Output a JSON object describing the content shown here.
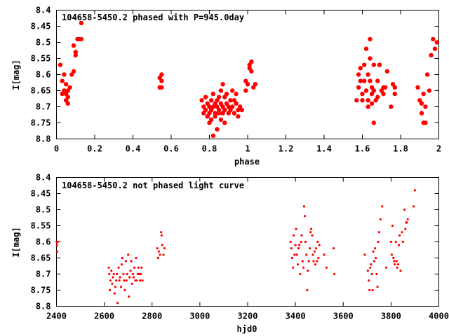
{
  "chart_data": [
    {
      "type": "scatter",
      "title": "104658-5450.2 phased with P=945.0day",
      "xlabel": "phase",
      "ylabel": "I[mag]",
      "xlim": [
        0,
        2
      ],
      "ylim": [
        8.8,
        8.4
      ],
      "y_inverted": true,
      "x_ticks": [
        "0",
        "0.2",
        "0.4",
        "0.6",
        "0.8",
        "1",
        "1.2",
        "1.4",
        "1.6",
        "1.8",
        "2"
      ],
      "y_ticks": [
        "8.4",
        "8.45",
        "8.5",
        "8.55",
        "8.6",
        "8.65",
        "8.7",
        "8.75",
        "8.8"
      ],
      "grid": false,
      "marker": "filled-circle-large",
      "color": "#ff0000",
      "points": [
        [
          0.02,
          8.57
        ],
        [
          0.03,
          8.62
        ],
        [
          0.03,
          8.66
        ],
        [
          0.04,
          8.6
        ],
        [
          0.04,
          8.65
        ],
        [
          0.05,
          8.63
        ],
        [
          0.05,
          8.68
        ],
        [
          0.06,
          8.67
        ],
        [
          0.06,
          8.69
        ],
        [
          0.07,
          8.64
        ],
        [
          0.05,
          8.66
        ],
        [
          0.06,
          8.65
        ],
        [
          0.08,
          8.6
        ],
        [
          0.09,
          8.51
        ],
        [
          0.09,
          8.59
        ],
        [
          0.1,
          8.53
        ],
        [
          0.1,
          8.54
        ],
        [
          0.11,
          8.49
        ],
        [
          0.12,
          8.49
        ],
        [
          0.13,
          8.49
        ],
        [
          0.13,
          8.44
        ],
        [
          0.54,
          8.61
        ],
        [
          0.55,
          8.6
        ],
        [
          0.55,
          8.62
        ],
        [
          0.54,
          8.64
        ],
        [
          0.55,
          8.64
        ],
        [
          0.76,
          8.68
        ],
        [
          0.77,
          8.7
        ],
        [
          0.77,
          8.72
        ],
        [
          0.78,
          8.67
        ],
        [
          0.78,
          8.71
        ],
        [
          0.79,
          8.73
        ],
        [
          0.79,
          8.69
        ],
        [
          0.8,
          8.7
        ],
        [
          0.8,
          8.72
        ],
        [
          0.8,
          8.75
        ],
        [
          0.81,
          8.68
        ],
        [
          0.81,
          8.71
        ],
        [
          0.81,
          8.74
        ],
        [
          0.82,
          8.7
        ],
        [
          0.82,
          8.66
        ],
        [
          0.82,
          8.79
        ],
        [
          0.83,
          8.72
        ],
        [
          0.83,
          8.69
        ],
        [
          0.83,
          8.73
        ],
        [
          0.84,
          8.7
        ],
        [
          0.84,
          8.68
        ],
        [
          0.84,
          8.77
        ],
        [
          0.85,
          8.67
        ],
        [
          0.85,
          8.72
        ],
        [
          0.85,
          8.71
        ],
        [
          0.86,
          8.69
        ],
        [
          0.86,
          8.65
        ],
        [
          0.86,
          8.74
        ],
        [
          0.87,
          8.7
        ],
        [
          0.87,
          8.63
        ],
        [
          0.87,
          8.72
        ],
        [
          0.88,
          8.67
        ],
        [
          0.88,
          8.71
        ],
        [
          0.88,
          8.75
        ],
        [
          0.89,
          8.69
        ],
        [
          0.89,
          8.66
        ],
        [
          0.9,
          8.72
        ],
        [
          0.9,
          8.7
        ],
        [
          0.91,
          8.71
        ],
        [
          0.91,
          8.68
        ],
        [
          0.92,
          8.7
        ],
        [
          0.92,
          8.65
        ],
        [
          0.93,
          8.72
        ],
        [
          0.93,
          8.68
        ],
        [
          0.94,
          8.69
        ],
        [
          0.94,
          8.66
        ],
        [
          0.95,
          8.71
        ],
        [
          0.95,
          8.73
        ],
        [
          0.96,
          8.7
        ],
        [
          0.97,
          8.71
        ],
        [
          0.99,
          8.62
        ],
        [
          0.99,
          8.65
        ],
        [
          1.0,
          8.63
        ],
        [
          1.01,
          8.58
        ],
        [
          1.01,
          8.57
        ],
        [
          1.02,
          8.56
        ],
        [
          1.02,
          8.59
        ],
        [
          1.03,
          8.64
        ],
        [
          1.04,
          8.63
        ],
        [
          1.57,
          8.68
        ],
        [
          1.58,
          8.64
        ],
        [
          1.58,
          8.6
        ],
        [
          1.59,
          8.62
        ],
        [
          1.59,
          8.58
        ],
        [
          1.6,
          8.66
        ],
        [
          1.6,
          8.68
        ],
        [
          1.61,
          8.62
        ],
        [
          1.61,
          8.57
        ],
        [
          1.62,
          8.52
        ],
        [
          1.62,
          8.65
        ],
        [
          1.63,
          8.6
        ],
        [
          1.63,
          8.68
        ],
        [
          1.63,
          8.7
        ],
        [
          1.64,
          8.49
        ],
        [
          1.64,
          8.55
        ],
        [
          1.64,
          8.62
        ],
        [
          1.65,
          8.64
        ],
        [
          1.65,
          8.66
        ],
        [
          1.65,
          8.69
        ],
        [
          1.66,
          8.57
        ],
        [
          1.66,
          8.65
        ],
        [
          1.66,
          8.75
        ],
        [
          1.67,
          8.68
        ],
        [
          1.68,
          8.62
        ],
        [
          1.68,
          8.67
        ],
        [
          1.69,
          8.57
        ],
        [
          1.7,
          8.65
        ],
        [
          1.71,
          8.66
        ],
        [
          1.71,
          8.64
        ],
        [
          1.72,
          8.64
        ],
        [
          1.73,
          8.59
        ],
        [
          1.75,
          8.7
        ],
        [
          1.76,
          8.63
        ],
        [
          1.77,
          8.64
        ],
        [
          1.77,
          8.66
        ],
        [
          1.89,
          8.64
        ],
        [
          1.9,
          8.68
        ],
        [
          1.91,
          8.69
        ],
        [
          1.91,
          8.72
        ],
        [
          1.92,
          8.75
        ],
        [
          1.92,
          8.66
        ],
        [
          1.93,
          8.7
        ],
        [
          1.93,
          8.75
        ],
        [
          1.94,
          8.6
        ],
        [
          1.95,
          8.65
        ],
        [
          1.96,
          8.54
        ],
        [
          1.97,
          8.49
        ],
        [
          1.98,
          8.52
        ],
        [
          1.99,
          8.5
        ]
      ]
    },
    {
      "type": "scatter",
      "title": "104658-5450.2 not phased light curve",
      "xlabel": "hjd0",
      "ylabel": "I[mag]",
      "xlim": [
        2400,
        4000
      ],
      "ylim": [
        8.8,
        8.4
      ],
      "y_inverted": true,
      "x_ticks": [
        "2400",
        "2600",
        "2800",
        "3000",
        "3200",
        "3400",
        "3600",
        "3800",
        "4000"
      ],
      "y_ticks": [
        "8.4",
        "8.45",
        "8.5",
        "8.55",
        "8.6",
        "8.65",
        "8.7",
        "8.75",
        "8.8"
      ],
      "grid": false,
      "marker": "dot-small",
      "color": "#ff0000",
      "points": [
        [
          2401,
          8.6
        ],
        [
          2402,
          8.61
        ],
        [
          2403,
          8.63
        ],
        [
          2405,
          8.6
        ],
        [
          2619,
          8.68
        ],
        [
          2621,
          8.7
        ],
        [
          2623,
          8.75
        ],
        [
          2626,
          8.72
        ],
        [
          2630,
          8.69
        ],
        [
          2633,
          8.73
        ],
        [
          2636,
          8.71
        ],
        [
          2640,
          8.7
        ],
        [
          2643,
          8.76
        ],
        [
          2646,
          8.74
        ],
        [
          2650,
          8.72
        ],
        [
          2653,
          8.7
        ],
        [
          2656,
          8.79
        ],
        [
          2660,
          8.68
        ],
        [
          2663,
          8.72
        ],
        [
          2666,
          8.71
        ],
        [
          2670,
          8.74
        ],
        [
          2673,
          8.67
        ],
        [
          2676,
          8.65
        ],
        [
          2680,
          8.7
        ],
        [
          2683,
          8.72
        ],
        [
          2686,
          8.75
        ],
        [
          2690,
          8.66
        ],
        [
          2693,
          8.72
        ],
        [
          2696,
          8.7
        ],
        [
          2700,
          8.64
        ],
        [
          2703,
          8.77
        ],
        [
          2706,
          8.71
        ],
        [
          2710,
          8.69
        ],
        [
          2713,
          8.66
        ],
        [
          2716,
          8.73
        ],
        [
          2720,
          8.7
        ],
        [
          2723,
          8.71
        ],
        [
          2726,
          8.68
        ],
        [
          2730,
          8.72
        ],
        [
          2733,
          8.65
        ],
        [
          2736,
          8.72
        ],
        [
          2740,
          8.7
        ],
        [
          2743,
          8.68
        ],
        [
          2746,
          8.7
        ],
        [
          2750,
          8.72
        ],
        [
          2753,
          8.7
        ],
        [
          2756,
          8.68
        ],
        [
          2760,
          8.72
        ],
        [
          2822,
          8.62
        ],
        [
          2825,
          8.65
        ],
        [
          2828,
          8.63
        ],
        [
          2833,
          8.64
        ],
        [
          2838,
          8.57
        ],
        [
          2840,
          8.58
        ],
        [
          2843,
          8.61
        ],
        [
          2848,
          8.64
        ],
        [
          2852,
          8.62
        ],
        [
          3380,
          8.6
        ],
        [
          3383,
          8.62
        ],
        [
          3386,
          8.65
        ],
        [
          3390,
          8.68
        ],
        [
          3393,
          8.58
        ],
        [
          3396,
          8.64
        ],
        [
          3400,
          8.61
        ],
        [
          3403,
          8.56
        ],
        [
          3406,
          8.64
        ],
        [
          3410,
          8.67
        ],
        [
          3413,
          8.62
        ],
        [
          3416,
          8.61
        ],
        [
          3420,
          8.7
        ],
        [
          3423,
          8.6
        ],
        [
          3426,
          8.58
        ],
        [
          3430,
          8.66
        ],
        [
          3433,
          8.68
        ],
        [
          3436,
          8.49
        ],
        [
          3439,
          8.52
        ],
        [
          3442,
          8.6
        ],
        [
          3446,
          8.64
        ],
        [
          3449,
          8.75
        ],
        [
          3452,
          8.69
        ],
        [
          3456,
          8.66
        ],
        [
          3460,
          8.62
        ],
        [
          3463,
          8.57
        ],
        [
          3466,
          8.56
        ],
        [
          3470,
          8.58
        ],
        [
          3473,
          8.64
        ],
        [
          3476,
          8.66
        ],
        [
          3480,
          8.63
        ],
        [
          3483,
          8.67
        ],
        [
          3486,
          8.62
        ],
        [
          3490,
          8.66
        ],
        [
          3493,
          8.6
        ],
        [
          3496,
          8.65
        ],
        [
          3500,
          8.61
        ],
        [
          3520,
          8.64
        ],
        [
          3530,
          8.68
        ],
        [
          3560,
          8.62
        ],
        [
          3563,
          8.7
        ],
        [
          3690,
          8.64
        ],
        [
          3703,
          8.69
        ],
        [
          3707,
          8.72
        ],
        [
          3710,
          8.75
        ],
        [
          3713,
          8.68
        ],
        [
          3716,
          8.67
        ],
        [
          3720,
          8.7
        ],
        [
          3723,
          8.75
        ],
        [
          3726,
          8.63
        ],
        [
          3730,
          8.66
        ],
        [
          3733,
          8.62
        ],
        [
          3736,
          8.65
        ],
        [
          3740,
          8.7
        ],
        [
          3743,
          8.74
        ],
        [
          3746,
          8.6
        ],
        [
          3750,
          8.57
        ],
        [
          3756,
          8.53
        ],
        [
          3763,
          8.49
        ],
        [
          3780,
          8.68
        ],
        [
          3800,
          8.6
        ],
        [
          3803,
          8.64
        ],
        [
          3806,
          8.55
        ],
        [
          3810,
          8.65
        ],
        [
          3813,
          8.66
        ],
        [
          3816,
          8.67
        ],
        [
          3820,
          8.6
        ],
        [
          3823,
          8.66
        ],
        [
          3826,
          8.68
        ],
        [
          3830,
          8.67
        ],
        [
          3833,
          8.61
        ],
        [
          3836,
          8.58
        ],
        [
          3840,
          8.69
        ],
        [
          3846,
          8.57
        ],
        [
          3850,
          8.6
        ],
        [
          3856,
          8.5
        ],
        [
          3860,
          8.56
        ],
        [
          3863,
          8.54
        ],
        [
          3866,
          8.54
        ],
        [
          3870,
          8.53
        ],
        [
          3895,
          8.49
        ],
        [
          3900,
          8.44
        ]
      ]
    }
  ]
}
